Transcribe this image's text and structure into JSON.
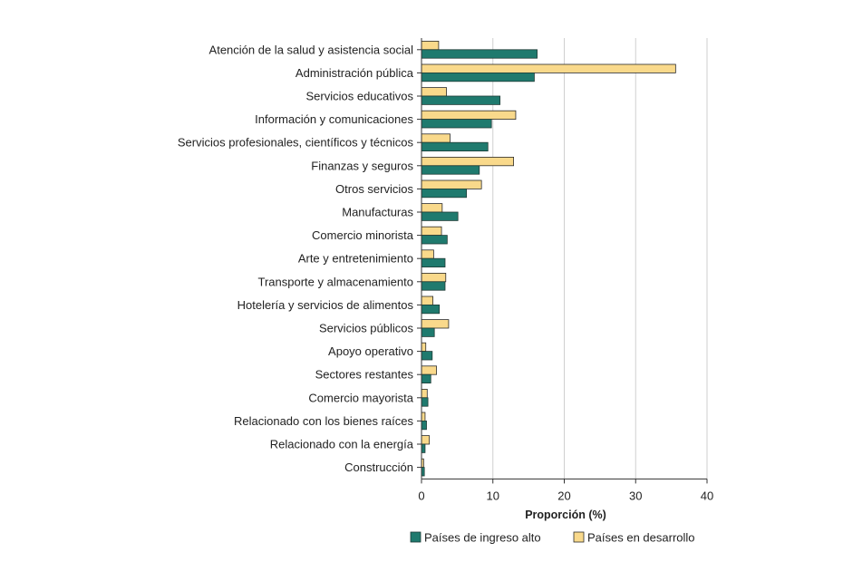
{
  "chart_data": {
    "type": "bar",
    "orientation": "horizontal",
    "categories": [
      "Atención de la salud y asistencia social",
      "Administración pública",
      "Servicios educativos",
      "Información y comunicaciones",
      "Servicios profesionales, científicos y técnicos",
      "Finanzas y seguros",
      "Otros servicios",
      "Manufacturas",
      "Comercio minorista",
      "Arte y entretenimiento",
      "Transporte y almacenamiento",
      "Hotelería y servicios de alimentos",
      "Servicios públicos",
      "Apoyo operativo",
      "Sectores restantes",
      "Comercio mayorista",
      "Relacionado con los bienes raíces",
      "Relacionado con la energía",
      "Construcción"
    ],
    "series": [
      {
        "name": "Países en desarrollo",
        "color": "#f9d98b",
        "values": [
          2.4,
          35.6,
          3.5,
          13.2,
          4.0,
          12.9,
          8.4,
          2.9,
          2.8,
          1.7,
          3.4,
          1.6,
          3.8,
          0.6,
          2.1,
          0.8,
          0.5,
          1.1,
          0.3
        ]
      },
      {
        "name": "Países de ingreso alto",
        "color": "#1f7a6e",
        "values": [
          16.2,
          15.8,
          11.0,
          9.8,
          9.3,
          8.1,
          6.3,
          5.1,
          3.6,
          3.3,
          3.3,
          2.5,
          1.8,
          1.5,
          1.3,
          0.9,
          0.7,
          0.5,
          0.4
        ]
      }
    ],
    "xlabel": "Proporción (%)",
    "xlim": [
      0,
      40
    ],
    "xticks": [
      "0",
      "10",
      "20",
      "30",
      "40"
    ],
    "grid": "vertical",
    "legend": {
      "placement": "bottom",
      "items": [
        "Países de ingreso alto",
        "Países en desarrollo"
      ]
    }
  }
}
